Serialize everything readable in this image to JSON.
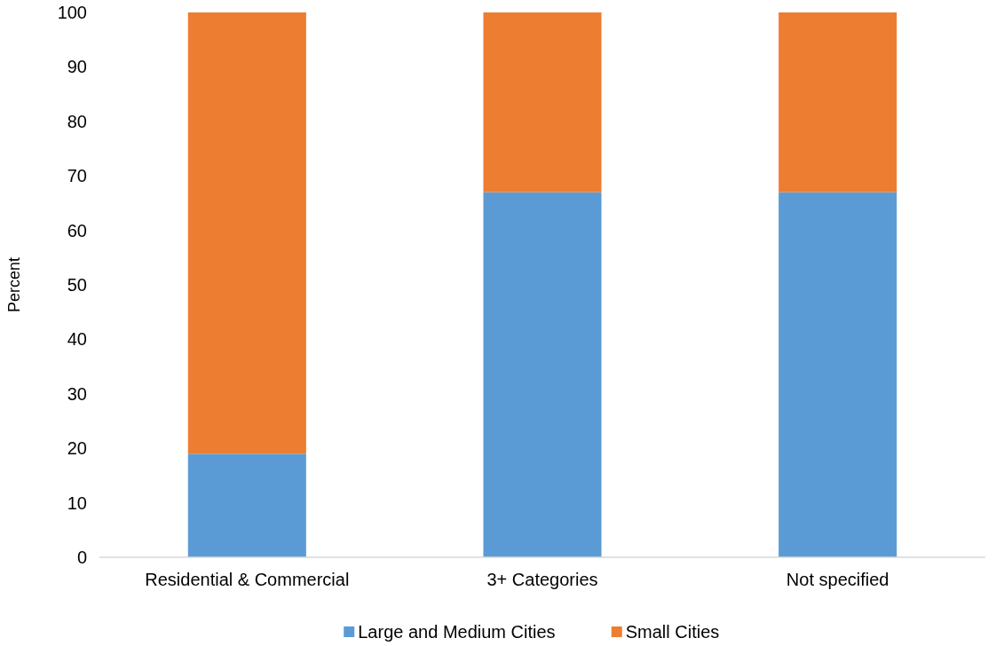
{
  "chart_data": {
    "type": "bar",
    "stacked": true,
    "ylabel": "Percent",
    "categories": [
      "Residential & Commercial",
      "3+ Categories",
      "Not specified"
    ],
    "series": [
      {
        "name": "Large and Medium Cities",
        "color": "#5b9bd5",
        "values": [
          19,
          67,
          67
        ]
      },
      {
        "name": "Small Cities",
        "color": "#ed7d31",
        "values": [
          81,
          33,
          33
        ]
      }
    ],
    "ylim": [
      0,
      100
    ],
    "yticks": [
      0,
      10,
      20,
      30,
      40,
      50,
      60,
      70,
      80,
      90,
      100
    ],
    "grid": false,
    "legend": "bottom"
  }
}
